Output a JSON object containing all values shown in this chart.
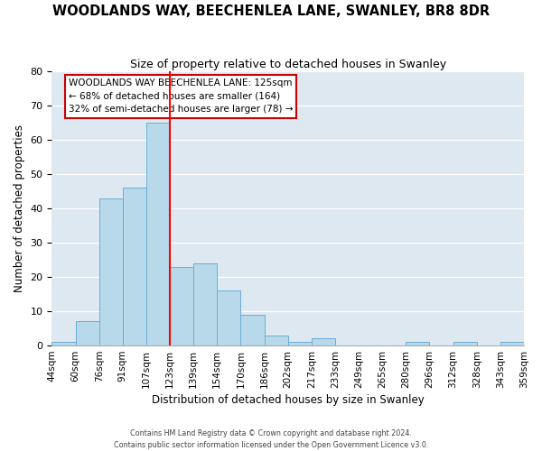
{
  "title": "WOODLANDS WAY, BEECHENLEA LANE, SWANLEY, BR8 8DR",
  "subtitle": "Size of property relative to detached houses in Swanley",
  "xlabel": "Distribution of detached houses by size in Swanley",
  "ylabel": "Number of detached properties",
  "bin_edges": [
    "44sqm",
    "60sqm",
    "76sqm",
    "91sqm",
    "107sqm",
    "123sqm",
    "139sqm",
    "154sqm",
    "170sqm",
    "186sqm",
    "202sqm",
    "217sqm",
    "233sqm",
    "249sqm",
    "265sqm",
    "280sqm",
    "296sqm",
    "312sqm",
    "328sqm",
    "343sqm",
    "359sqm"
  ],
  "bar_heights": [
    1,
    7,
    43,
    46,
    65,
    23,
    24,
    16,
    9,
    3,
    1,
    2,
    0,
    0,
    0,
    1,
    0,
    1,
    0,
    1
  ],
  "bar_color": "#b8d9ea",
  "bar_edge_color": "#6aaed6",
  "vline_label_index": 5,
  "vline_color": "red",
  "ylim": [
    0,
    80
  ],
  "yticks": [
    0,
    10,
    20,
    30,
    40,
    50,
    60,
    70,
    80
  ],
  "annotation_title": "WOODLANDS WAY BEECHENLEA LANE: 125sqm",
  "annotation_line1": "← 68% of detached houses are smaller (164)",
  "annotation_line2": "32% of semi-detached houses are larger (78) →",
  "annotation_box_facecolor": "#ffffff",
  "annotation_box_edgecolor": "#cc0000",
  "footer_line1": "Contains HM Land Registry data © Crown copyright and database right 2024.",
  "footer_line2": "Contains public sector information licensed under the Open Government Licence v3.0.",
  "background_color": "#dde8f0"
}
